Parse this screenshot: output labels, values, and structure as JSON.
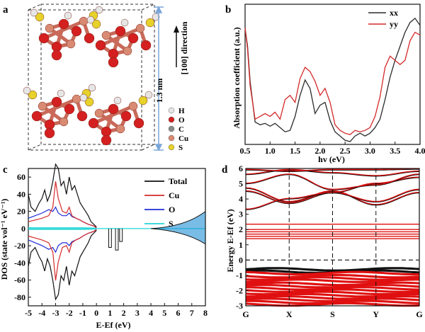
{
  "panels": {
    "a": {
      "letter": "a",
      "scale_label": "1.3 nm",
      "direction_label": "[100] direction",
      "legend": [
        {
          "label": "H",
          "color": "#e6e6e6"
        },
        {
          "label": "O",
          "color": "#d42020"
        },
        {
          "label": "C",
          "color": "#8a8a8a"
        },
        {
          "label": "Cu",
          "color": "#d98a72"
        },
        {
          "label": "S",
          "color": "#e6d22a"
        }
      ]
    },
    "b": {
      "letter": "b"
    },
    "c": {
      "letter": "c"
    },
    "d": {
      "letter": "d"
    }
  },
  "chart_data": [
    {
      "panel": "b",
      "type": "line",
      "xlabel": "hv (eV)",
      "ylabel": "Absorption coefficient (a.u.)",
      "xlim": [
        0.5,
        4.0
      ],
      "ylim": [
        0,
        1
      ],
      "xticks": [
        "0.5",
        "1.0",
        "1.5",
        "2.0",
        "2.5",
        "3.0",
        "3.5",
        "4.0"
      ],
      "yticks_shown": false,
      "legend_position": "top-right",
      "series": [
        {
          "name": "xx",
          "color": "#2a2a2a",
          "x": [
            0.5,
            0.55,
            0.6,
            0.7,
            0.8,
            0.9,
            1.0,
            1.1,
            1.2,
            1.3,
            1.4,
            1.5,
            1.6,
            1.7,
            1.8,
            1.9,
            2.0,
            2.1,
            2.2,
            2.3,
            2.4,
            2.5,
            2.6,
            2.7,
            2.8,
            2.9,
            3.0,
            3.1,
            3.2,
            3.3,
            3.4,
            3.5,
            3.6,
            3.7,
            3.8,
            3.9,
            4.0
          ],
          "y": [
            0.83,
            0.7,
            0.45,
            0.16,
            0.14,
            0.15,
            0.13,
            0.15,
            0.12,
            0.09,
            0.1,
            0.2,
            0.35,
            0.46,
            0.4,
            0.22,
            0.28,
            0.3,
            0.17,
            0.09,
            0.06,
            0.03,
            0.02,
            0.06,
            0.08,
            0.06,
            0.08,
            0.12,
            0.18,
            0.32,
            0.48,
            0.6,
            0.7,
            0.8,
            0.87,
            0.9,
            0.85
          ]
        },
        {
          "name": "yy",
          "color": "#d42a2a",
          "x": [
            0.5,
            0.55,
            0.6,
            0.7,
            0.8,
            0.9,
            1.0,
            1.1,
            1.2,
            1.3,
            1.4,
            1.5,
            1.6,
            1.7,
            1.8,
            1.9,
            2.0,
            2.1,
            2.2,
            2.3,
            2.4,
            2.5,
            2.6,
            2.7,
            2.8,
            2.9,
            3.0,
            3.1,
            3.2,
            3.3,
            3.4,
            3.5,
            3.6,
            3.7,
            3.8,
            3.9,
            4.0
          ],
          "y": [
            0.83,
            0.68,
            0.42,
            0.18,
            0.2,
            0.22,
            0.2,
            0.23,
            0.18,
            0.32,
            0.35,
            0.3,
            0.47,
            0.55,
            0.52,
            0.45,
            0.35,
            0.4,
            0.3,
            0.14,
            0.1,
            0.08,
            0.07,
            0.1,
            0.09,
            0.1,
            0.12,
            0.2,
            0.34,
            0.55,
            0.63,
            0.6,
            0.57,
            0.6,
            0.74,
            0.8,
            0.78
          ]
        }
      ]
    },
    {
      "panel": "c",
      "type": "line",
      "xlabel": "E-Ef (eV)",
      "ylabel": "DOS (state vol⁻¹ eV⁻¹)",
      "xlim": [
        -5,
        8
      ],
      "ylim": [
        -90,
        70
      ],
      "xticks": [
        "-5",
        "-4",
        "-3",
        "-2",
        "-1",
        "0",
        "1",
        "2",
        "3",
        "4",
        "5",
        "6",
        "7",
        "8"
      ],
      "yticks": [
        "60",
        "40",
        "20",
        "0",
        "-20",
        "-40",
        "-60",
        "-80"
      ],
      "legend_position": "top-right",
      "series": [
        {
          "name": "Total",
          "color": "#111111",
          "x": [
            -5,
            -4.8,
            -4.5,
            -4.2,
            -4,
            -3.8,
            -3.6,
            -3.4,
            -3.2,
            -3.0,
            -2.8,
            -2.6,
            -2.4,
            -2.2,
            -2.0,
            -1.8,
            -1.6,
            -1.4,
            -1.2,
            -1.0,
            -0.8,
            -0.6,
            -0.4,
            -0.2,
            0
          ],
          "y": [
            40,
            25,
            20,
            30,
            35,
            45,
            32,
            40,
            55,
            75,
            70,
            50,
            55,
            40,
            60,
            45,
            50,
            40,
            30,
            25,
            20,
            15,
            8,
            5,
            2
          ]
        },
        {
          "name": "Cu",
          "color": "#d42a2a",
          "x": [
            -5,
            -4.5,
            -4,
            -3.5,
            -3.2,
            -3.0,
            -2.8,
            -2.5,
            -2.2,
            -2.0,
            -1.8,
            -1.5,
            -1.2,
            -1.0,
            -0.6,
            -0.2,
            0
          ],
          "y": [
            8,
            10,
            12,
            15,
            25,
            55,
            35,
            20,
            18,
            25,
            15,
            12,
            10,
            8,
            5,
            3,
            1
          ]
        },
        {
          "name": "O",
          "color": "#1f2bd6",
          "x": [
            -5,
            -4.5,
            -4,
            -3.5,
            -3.2,
            -3.0,
            -2.8,
            -2.5,
            -2.2,
            -2.0,
            -1.8,
            -1.5,
            -1.2,
            -1.0,
            -0.6,
            -0.2,
            0
          ],
          "y": [
            12,
            15,
            18,
            22,
            20,
            25,
            18,
            15,
            15,
            18,
            14,
            12,
            10,
            8,
            5,
            3,
            1
          ]
        },
        {
          "name": "S",
          "color": "#22d6d6",
          "x": [
            -5,
            -4,
            -3,
            -2,
            -1,
            0
          ],
          "y": [
            1,
            1,
            1,
            1,
            1,
            0.5
          ]
        }
      ]
    },
    {
      "panel": "d",
      "type": "line",
      "xlabel": "",
      "ylabel": "Energy E-Ef (eV)",
      "ylim": [
        -3,
        6
      ],
      "yticks": [
        "6",
        "5",
        "4",
        "3",
        "2",
        "1",
        "0",
        "-1",
        "-2",
        "-3"
      ],
      "xticks": [
        "G",
        "X",
        "S",
        "Y",
        "G"
      ],
      "kpoint_positions": [
        0,
        1,
        2,
        3,
        4
      ],
      "fermi_level": 0,
      "series_colors": {
        "spin1": "#111111",
        "spin2": "#e01010"
      },
      "flat_bands_ev": [
        2.35,
        2.0,
        1.85,
        1.7,
        1.55,
        1.4
      ],
      "conduction_bands": [
        {
          "y": [
            4.7,
            3.8,
            4.5,
            3.6,
            4.4
          ]
        },
        {
          "y": [
            4.5,
            3.7,
            4.4,
            3.8,
            4.6
          ]
        },
        {
          "y": [
            3.3,
            4.0,
            4.4,
            5.0,
            5.4
          ]
        },
        {
          "y": [
            5.0,
            5.6,
            4.6,
            4.9,
            5.6
          ]
        },
        {
          "y": [
            5.6,
            5.9,
            5.7,
            5.5,
            5.8
          ]
        },
        {
          "y": [
            5.9,
            5.8,
            5.9,
            5.9,
            5.95
          ]
        }
      ],
      "valence_bands_ev": [
        -0.65,
        -0.8,
        -0.9,
        -1.1,
        -1.25,
        -1.4,
        -1.6,
        -1.75,
        -1.9,
        -2.05,
        -2.2,
        -2.35,
        -2.5,
        -2.65,
        -2.8,
        -2.95
      ]
    }
  ]
}
